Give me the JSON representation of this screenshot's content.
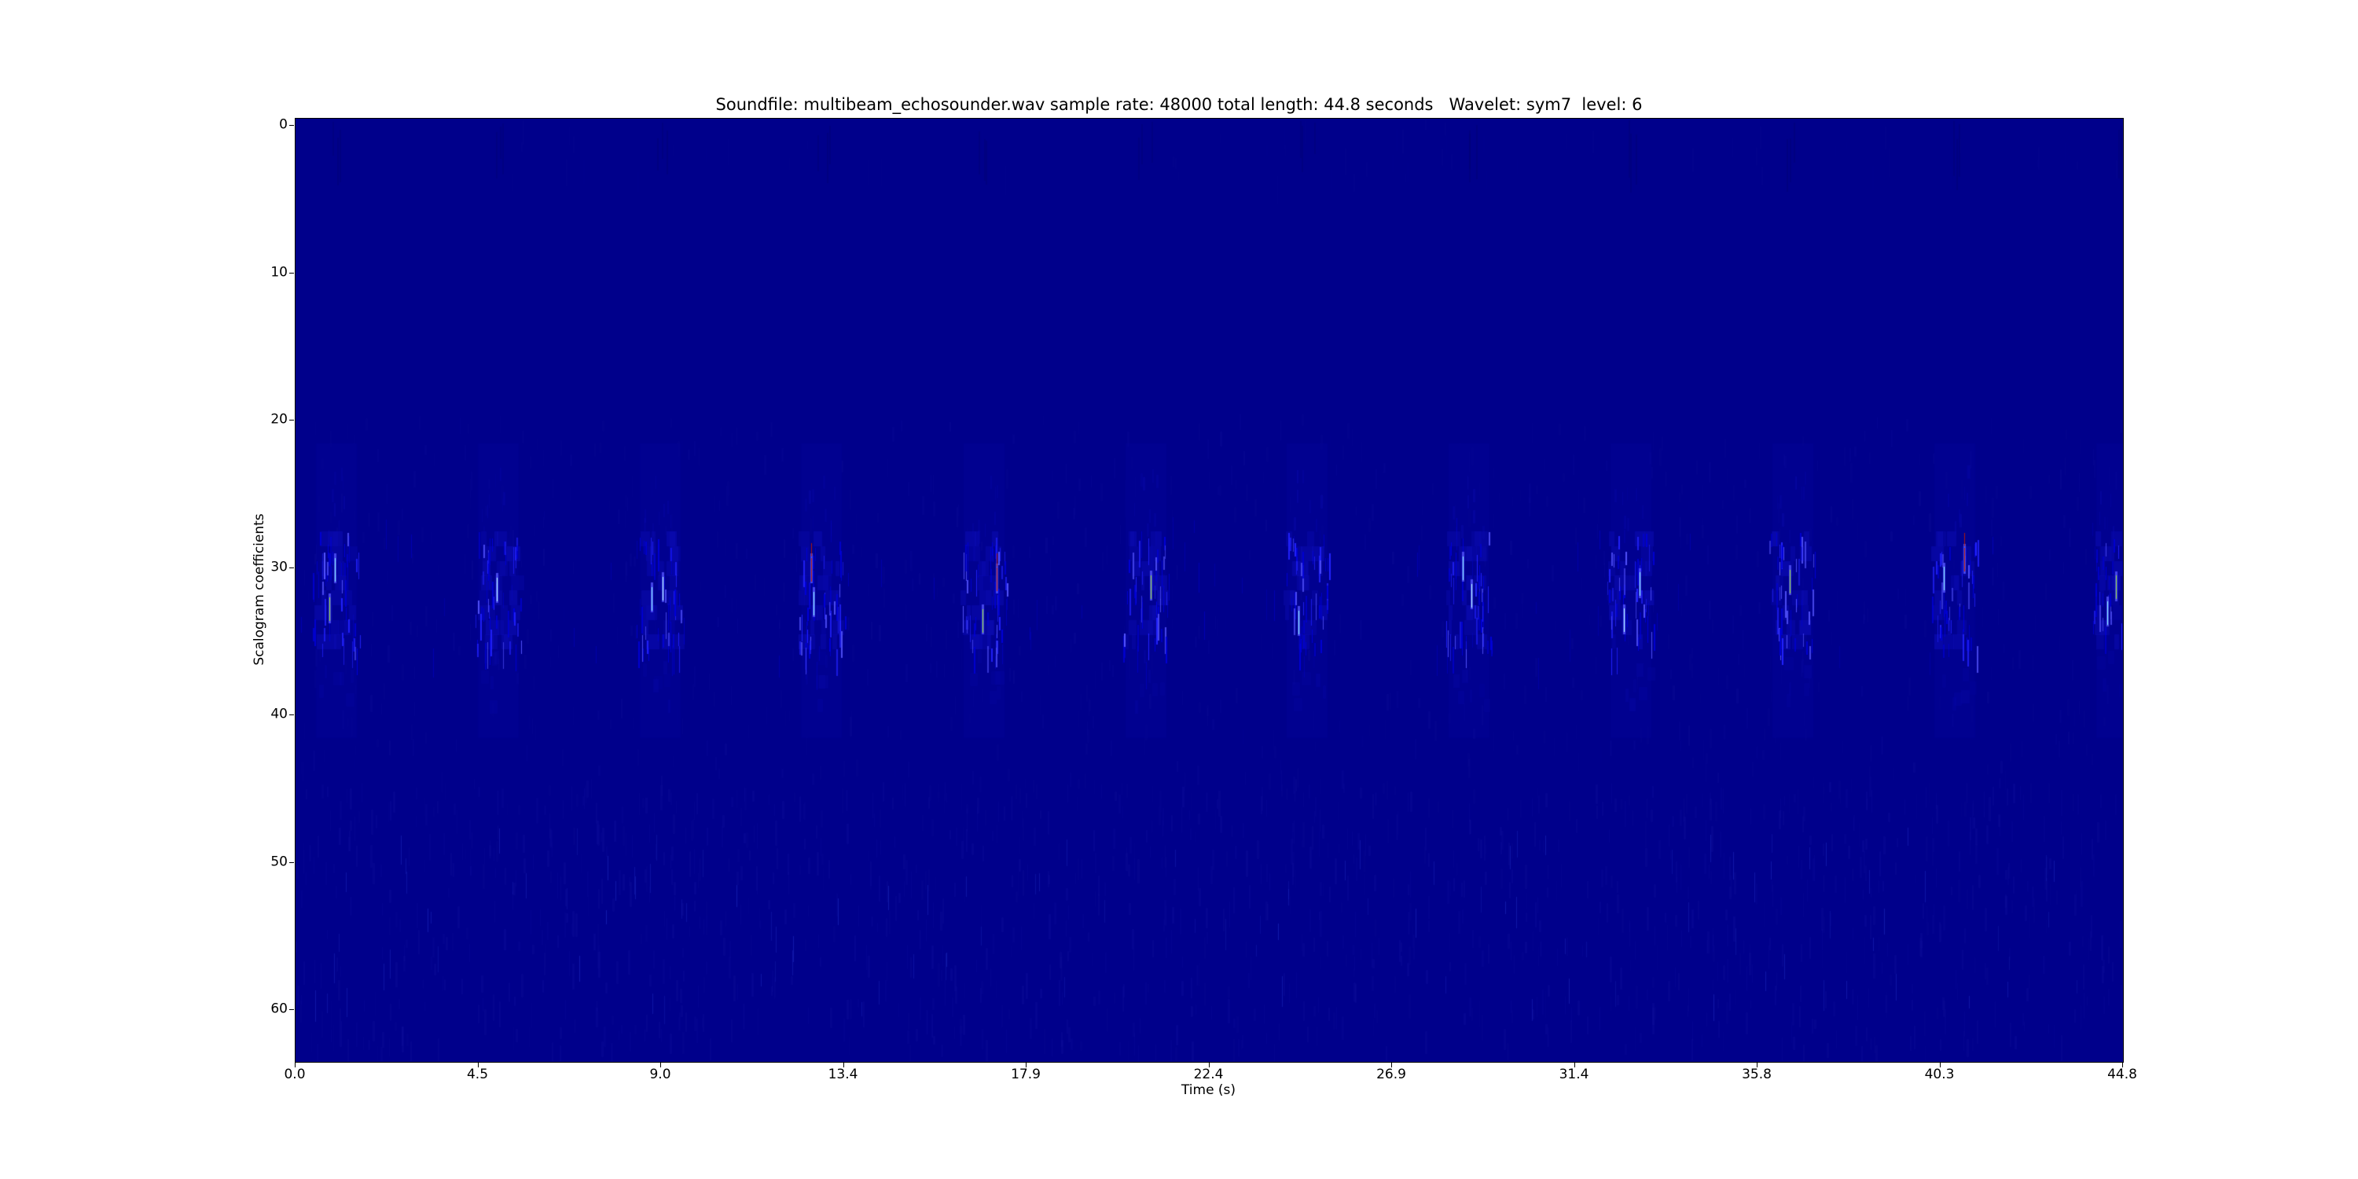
{
  "figure": {
    "title": "Soundfile: multibeam_echosounder.wav sample rate: 48000 total length: 44.8 seconds   Wavelet: sym7  level: 6",
    "xlabel": "Time (s)",
    "ylabel": "Scalogram coefficients"
  },
  "chart_data": {
    "type": "heatmap",
    "title": "Soundfile: multibeam_echosounder.wav sample rate: 48000 total length: 44.8 seconds   Wavelet: sym7  level: 6",
    "xlabel": "Time (s)",
    "ylabel": "Scalogram coefficients",
    "xlim": [
      0,
      44.8
    ],
    "n_rows": 64,
    "x_ticks": [
      {
        "label": "0.0",
        "s": 0.0
      },
      {
        "label": "4.5",
        "s": 4.48
      },
      {
        "label": "9.0",
        "s": 8.96
      },
      {
        "label": "13.4",
        "s": 13.44
      },
      {
        "label": "17.9",
        "s": 17.92
      },
      {
        "label": "22.4",
        "s": 22.4
      },
      {
        "label": "26.9",
        "s": 26.88
      },
      {
        "label": "31.4",
        "s": 31.36
      },
      {
        "label": "35.8",
        "s": 35.84
      },
      {
        "label": "40.3",
        "s": 40.32
      },
      {
        "label": "44.8",
        "s": 44.8
      }
    ],
    "y_ticks": [
      {
        "label": "0",
        "row": 0
      },
      {
        "label": "10",
        "row": 10
      },
      {
        "label": "20",
        "row": 20
      },
      {
        "label": "30",
        "row": 30
      },
      {
        "label": "40",
        "row": 40
      },
      {
        "label": "50",
        "row": 50
      },
      {
        "label": "60",
        "row": 60
      }
    ],
    "sound": {
      "file": "multibeam_echosounder.wav",
      "sample_rate": 48000,
      "total_length_s": 44.8,
      "wavelet": "sym7",
      "level": 6
    },
    "ping_times_s": [
      1.0,
      4.97,
      8.94,
      12.9,
      16.87,
      20.84,
      24.8,
      28.77,
      32.74,
      36.7,
      40.67,
      44.64
    ],
    "active_row_band": [
      28,
      36
    ],
    "colors": {
      "background": "#00008b",
      "dim": "#0b0bb2",
      "mid": "#0000d8",
      "bright": "#2222ff",
      "brighter": "#5555ff",
      "cyan": "#86f6ff",
      "pale_cyan": "#b5ffff",
      "green": "#93dd2b",
      "red": "#bf1a00",
      "noise": "#11119e",
      "noise_dark": "#000070",
      "speck": "#2233cc",
      "axis": "#000000"
    }
  }
}
